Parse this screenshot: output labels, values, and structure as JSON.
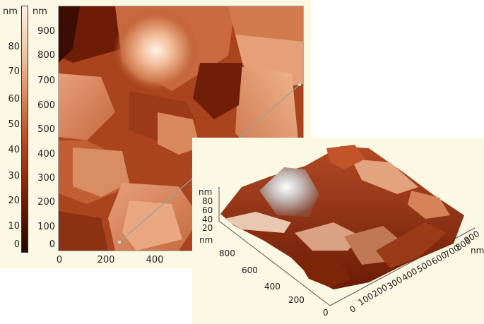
{
  "colorbar": {
    "unit": "nm",
    "ticks": [
      "80",
      "70",
      "60",
      "50",
      "40",
      "30",
      "20",
      "10",
      "0"
    ]
  },
  "image_2d": {
    "y_unit": "nm",
    "y_ticks": [
      "900",
      "800",
      "700",
      "600",
      "500",
      "400",
      "300",
      "200",
      "100",
      "0"
    ],
    "x_ticks": [
      "0",
      "200",
      "400"
    ]
  },
  "image_3d": {
    "z_unit": "nm",
    "z_ticks": [
      "80",
      "60",
      "40",
      "20"
    ],
    "y_unit": "nm",
    "y_ticks": [
      "800",
      "600",
      "400",
      "200",
      "0"
    ],
    "x_unit": "nm",
    "x_ticks": [
      "0",
      "100",
      "200",
      "300",
      "400",
      "500",
      "600",
      "700",
      "800",
      "900"
    ]
  },
  "colors": {
    "panel_background": "#fbf8e4",
    "height_low": "#200600",
    "height_mid": "#b9532b",
    "height_high": "#fdf1e6",
    "profile_line": "#8fa6a0"
  }
}
